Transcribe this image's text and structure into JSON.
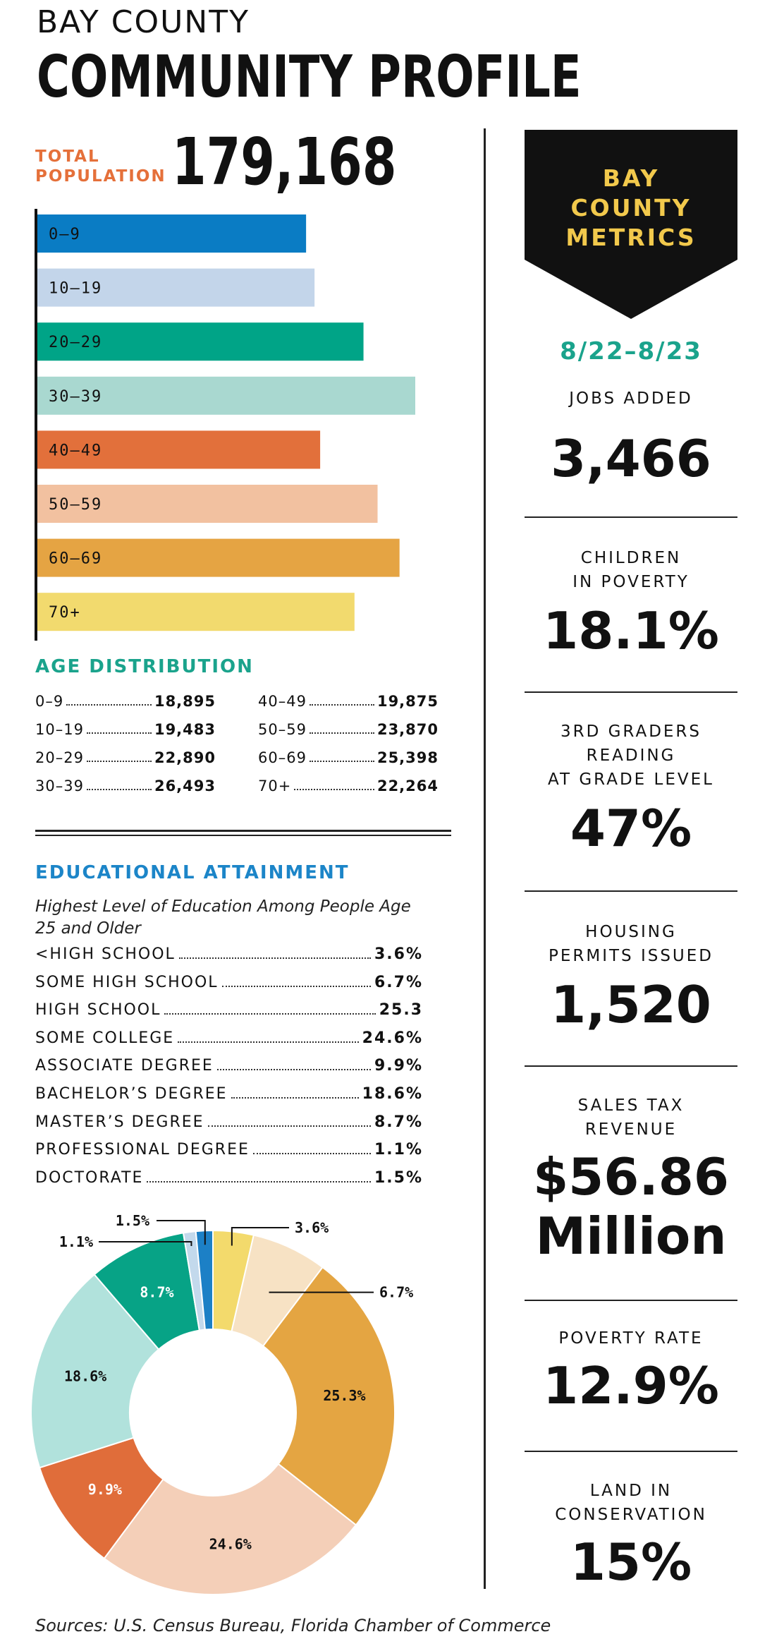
{
  "header": {
    "kicker": "BAY COUNTY",
    "title": "COMMUNITY PROFILE"
  },
  "population": {
    "label_line1": "TOTAL",
    "label_line2": "POPULATION",
    "value": "179,168"
  },
  "age_section": {
    "heading": "AGE DISTRIBUTION",
    "rows": [
      {
        "label": "0–9",
        "value": "18,895"
      },
      {
        "label": "10–19",
        "value": "19,483"
      },
      {
        "label": "20–29",
        "value": "22,890"
      },
      {
        "label": "30–39",
        "value": "26,493"
      },
      {
        "label": "40–49",
        "value": "19,875"
      },
      {
        "label": "50–59",
        "value": "23,870"
      },
      {
        "label": "60–69",
        "value": "25,398"
      },
      {
        "label": "70+",
        "value": "22,264"
      }
    ]
  },
  "education_section": {
    "heading": "EDUCATIONAL ATTAINMENT",
    "subtitle": "Highest Level of Education Among People Age 25 and Older",
    "rows": [
      {
        "label": "<HIGH SCHOOL",
        "value": "3.6%"
      },
      {
        "label": "SOME HIGH SCHOOL",
        "value": "6.7%"
      },
      {
        "label": "HIGH SCHOOL",
        "value": "25.3"
      },
      {
        "label": "SOME COLLEGE",
        "value": "24.6%"
      },
      {
        "label": "ASSOCIATE DEGREE",
        "value": "9.9%"
      },
      {
        "label": "BACHELOR’S DEGREE",
        "value": "18.6%"
      },
      {
        "label": "MASTER’S DEGREE",
        "value": "8.7%"
      },
      {
        "label": "PROFESSIONAL DEGREE",
        "value": "1.1%"
      },
      {
        "label": "DOCTORATE",
        "value": "1.5%"
      }
    ]
  },
  "chart_data": [
    {
      "type": "bar",
      "orientation": "horizontal",
      "categories": [
        "0–9",
        "10–19",
        "20–29",
        "30–39",
        "40–49",
        "50–59",
        "60–69",
        "70+"
      ],
      "values": [
        18895,
        19483,
        22890,
        26493,
        19875,
        23870,
        25398,
        22264
      ],
      "colors": [
        "#0a7cc4",
        "#c3d5ea",
        "#00a487",
        "#a9d8d0",
        "#e2703b",
        "#f2c1a0",
        "#e5a443",
        "#f2da6e"
      ],
      "title": "",
      "xlabel": "",
      "ylabel": "",
      "xlim": [
        0,
        27000
      ],
      "grid": false
    },
    {
      "type": "pie",
      "style": "donut",
      "categories": [
        "<HIGH SCHOOL",
        "SOME HIGH SCHOOL",
        "HIGH SCHOOL",
        "SOME COLLEGE",
        "ASSOCIATE DEGREE",
        "BACHELOR’S DEGREE",
        "MASTER’S DEGREE",
        "PROFESSIONAL DEGREE",
        "DOCTORATE"
      ],
      "values": [
        3.6,
        6.7,
        25.3,
        24.6,
        9.9,
        18.6,
        8.7,
        1.1,
        1.5
      ],
      "labels": [
        "3.6%",
        "6.7%",
        "25.3%",
        "24.6%",
        "9.9%",
        "18.6%",
        "8.7%",
        "1.1%",
        "1.5%"
      ],
      "colors": [
        "#f3da6c",
        "#f7e2c4",
        "#e4a542",
        "#f4cfb8",
        "#e06d3a",
        "#b1e2dc",
        "#07a386",
        "#c3d9ec",
        "#1c80c6"
      ],
      "title": ""
    }
  ],
  "metrics": {
    "badge_line1": "BAY",
    "badge_line2": "COUNTY",
    "badge_line3": "METRICS",
    "date_range": "8/22–8/23",
    "items": [
      {
        "label": "JOBS ADDED",
        "value": "3,466"
      },
      {
        "label": "CHILDREN\nIN POVERTY",
        "value": "18.1%"
      },
      {
        "label": "3RD GRADERS\nREADING\nAT GRADE LEVEL",
        "value": "47%"
      },
      {
        "label": "HOUSING\nPERMITS ISSUED",
        "value": "1,520"
      },
      {
        "label": "SALES TAX\nREVENUE",
        "value": "$56.86",
        "value2": "Million"
      },
      {
        "label": "POVERTY RATE",
        "value": "12.9%"
      },
      {
        "label": "LAND IN\nCONSERVATION",
        "value": "15%"
      }
    ]
  },
  "sources": "Sources: U.S. Census Bureau, Florida Chamber of Commerce",
  "colors": {
    "orange": "#e5703a",
    "teal": "#1aa38c",
    "blue": "#1c85c8",
    "gold": "#f2c94c",
    "black": "#111111"
  }
}
